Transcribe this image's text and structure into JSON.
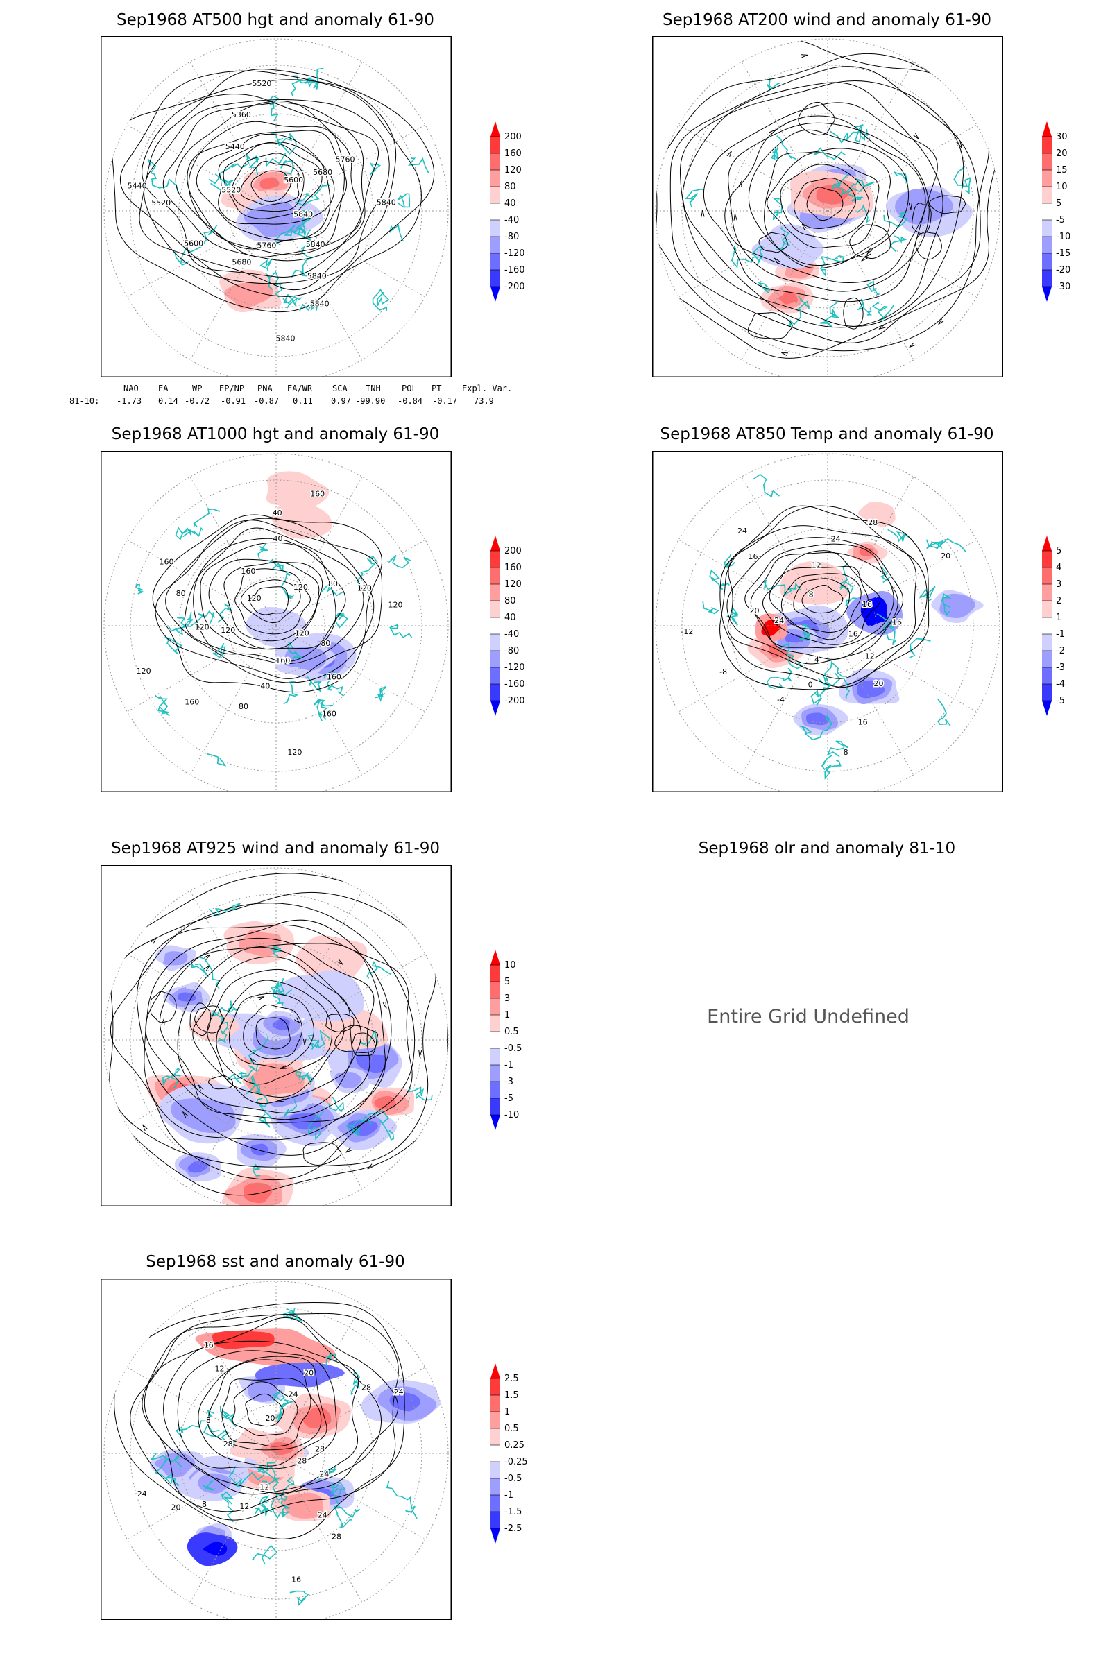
{
  "panels": [
    {
      "id": "at500",
      "title": "Sep1968 AT500 hgt and anomaly 61-90",
      "kind": "height",
      "contour_labels": [
        "5840",
        "5840",
        "5840",
        "5840",
        "5840",
        "5760",
        "5680",
        "5600",
        "5520",
        "5440",
        "5520",
        "5440",
        "5360",
        "5520",
        "5600",
        "5680",
        "5760",
        "5840"
      ],
      "colorbar": [
        "200",
        "160",
        "120",
        "80",
        "40",
        "-40",
        "-80",
        "-120",
        "-160",
        "-200"
      ]
    },
    {
      "id": "at200",
      "title": "Sep1968 AT200 wind and anomaly 61-90",
      "kind": "wind",
      "colorbar": [
        "30",
        "20",
        "15",
        "10",
        "5",
        "-5",
        "-10",
        "-15",
        "-20",
        "-30"
      ]
    },
    {
      "id": "at1000",
      "title": "Sep1968 AT1000 hgt and anomaly 61-90",
      "kind": "height",
      "contour_labels": [
        "120",
        "80",
        "160",
        "160",
        "120",
        "160",
        "40",
        "80",
        "160",
        "120",
        "120",
        "120",
        "80",
        "160",
        "120",
        "160",
        "40",
        "40",
        "160",
        "120",
        "80",
        "120",
        "120"
      ],
      "colorbar": [
        "200",
        "160",
        "120",
        "80",
        "40",
        "-40",
        "-80",
        "-120",
        "-160",
        "-200"
      ]
    },
    {
      "id": "at850",
      "title": "Sep1968 AT850 Temp and anomaly 61-90",
      "kind": "temp",
      "contour_labels": [
        "16",
        "12",
        "20",
        "16",
        "8",
        "4",
        "0",
        "-4",
        "-8",
        "-12",
        "24",
        "20",
        "16",
        "24",
        "8",
        "12",
        "24",
        "28",
        "20",
        "16",
        "16"
      ],
      "colorbar": [
        "5",
        "4",
        "3",
        "2",
        "1",
        "-1",
        "-2",
        "-3",
        "-4",
        "-5"
      ]
    },
    {
      "id": "at925",
      "title": "Sep1968 AT925 wind and anomaly 61-90",
      "kind": "wind925",
      "colorbar": [
        "10",
        "5",
        "3",
        "1",
        "0.5",
        "-0.5",
        "-1",
        "-3",
        "-5",
        "-10"
      ]
    },
    {
      "id": "olr",
      "title": "Sep1968 olr and anomaly 81-10",
      "kind": "undefined",
      "message": "Entire Grid Undefined"
    },
    {
      "id": "sst",
      "title": "Sep1968 sst and anomaly 61-90",
      "kind": "sst",
      "contour_labels": [
        "28",
        "24",
        "24",
        "28",
        "16",
        "12",
        "12",
        "8",
        "20",
        "24",
        "28",
        "8",
        "12",
        "16",
        "20",
        "24",
        "20",
        "28",
        "24",
        "28"
      ],
      "colorbar": [
        "2.5",
        "1.5",
        "1",
        "0.5",
        "0.25",
        "-0.25",
        "-0.5",
        "-1",
        "-1.5",
        "-2.5"
      ]
    }
  ],
  "teleconnection": {
    "headers": [
      "NAO",
      "EA",
      "WP",
      "EP/NP",
      "PNA",
      "EA/WR",
      "SCA",
      "TNH",
      "POL",
      "PT",
      "Expl. Var."
    ],
    "row_label": "81-10:",
    "values": [
      "-1.73",
      "0.14",
      "-0.72",
      "-0.91",
      "-0.87",
      "0.11",
      "0.97",
      "-99.90",
      "-0.84",
      "-0.17",
      "73.9"
    ]
  },
  "colors": {
    "frame": "#000000",
    "coastline": "#20c0c0",
    "grid": "#999999",
    "warm": [
      "#ff0000",
      "#ff3a3a",
      "#ff6e6e",
      "#ff9e9e",
      "#ffd0d0"
    ],
    "cold": [
      "#d0d0ff",
      "#9e9eff",
      "#6e6eff",
      "#3a3aff",
      "#0000ff"
    ]
  }
}
